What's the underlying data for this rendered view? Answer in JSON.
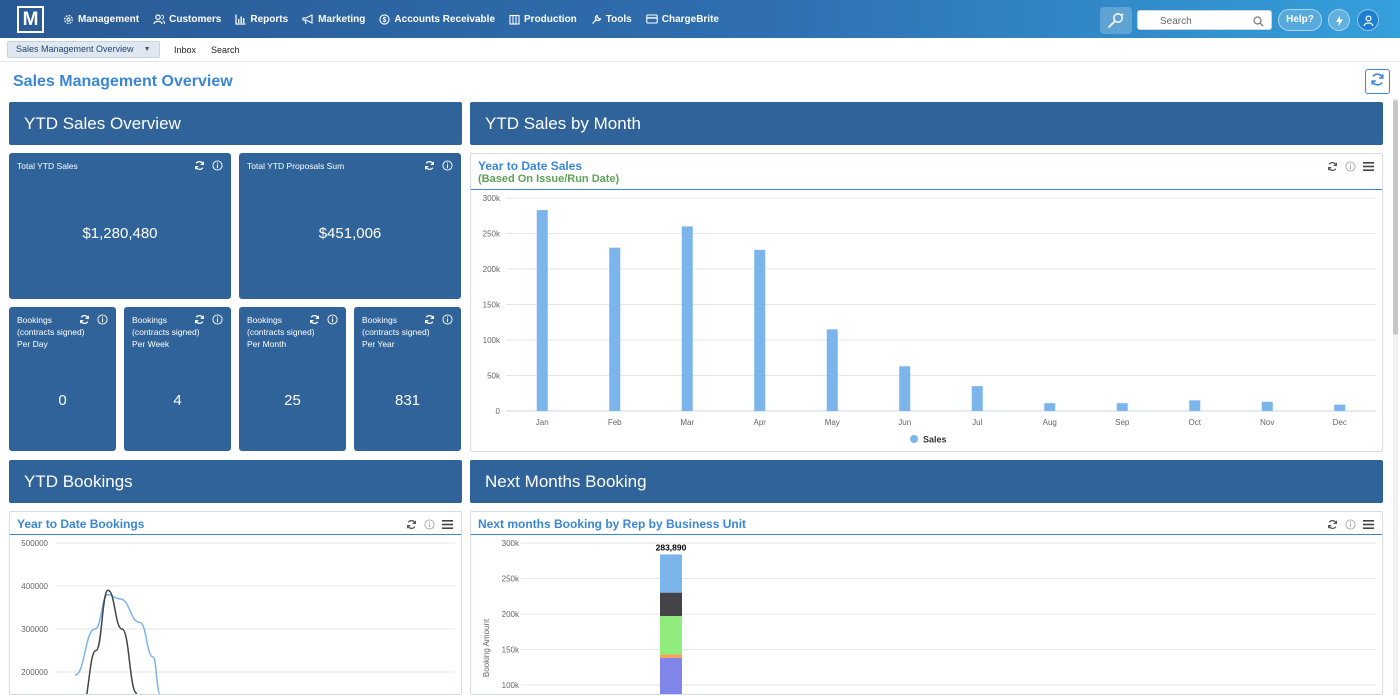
{
  "nav": {
    "logo": "M",
    "items": [
      {
        "label": "Management",
        "icon": "gear-icon"
      },
      {
        "label": "Customers",
        "icon": "users-icon"
      },
      {
        "label": "Reports",
        "icon": "bar-chart-icon"
      },
      {
        "label": "Marketing",
        "icon": "megaphone-icon"
      },
      {
        "label": "Accounts Receivable",
        "icon": "dollar-circle-icon"
      },
      {
        "label": "Production",
        "icon": "building-icon"
      },
      {
        "label": "Tools",
        "icon": "wrench-icon"
      },
      {
        "label": "ChargeBrite",
        "icon": "credit-card-icon"
      }
    ],
    "search_placeholder": "Search",
    "help_label": "Help?"
  },
  "tabs": {
    "active": "Sales Management Overview",
    "inbox": "Inbox",
    "search": "Search"
  },
  "page": {
    "title": "Sales Management Overview"
  },
  "sections": {
    "ytd_overview": "YTD Sales Overview",
    "ytd_by_month": "YTD Sales by Month",
    "ytd_bookings": "YTD Bookings",
    "next_months": "Next Months Booking"
  },
  "tiles": {
    "total_ytd_sales": {
      "label": "Total YTD Sales",
      "value": "$1,280,480"
    },
    "total_ytd_proposals": {
      "label": "Total YTD Proposals Sum",
      "value": "$451,006"
    },
    "per_day": {
      "label": "Bookings\n(contracts signed)\nPer Day",
      "value": "0"
    },
    "per_week": {
      "label": "Bookings\n(contracts signed)\nPer Week",
      "value": "4"
    },
    "per_month": {
      "label": "Bookings\n(contracts signed)\nPer Month",
      "value": "25"
    },
    "per_year": {
      "label": "Bookings\n(contracts signed)\nPer Year",
      "value": "831"
    }
  },
  "panels": {
    "ytd_sales": {
      "title": "Year to Date Sales",
      "subtitle": "(Based On Issue/Run Date)"
    },
    "ytd_bookings": {
      "title": "Year to Date Bookings"
    },
    "next_months": {
      "title": "Next months Booking by Rep by Business Unit"
    }
  },
  "chart_data": [
    {
      "type": "bar",
      "title": "Year to Date Sales",
      "subtitle": "(Based On Issue/Run Date)",
      "categories": [
        "Jan",
        "Feb",
        "Mar",
        "Apr",
        "May",
        "Jun",
        "Jul",
        "Aug",
        "Sep",
        "Oct",
        "Nov",
        "Dec"
      ],
      "series": [
        {
          "name": "Sales",
          "values": [
            283000,
            230000,
            260000,
            227000,
            115000,
            63000,
            35000,
            11000,
            11000,
            15000,
            13000,
            9000
          ],
          "color": "#7cb5ec"
        }
      ],
      "ylim": [
        0,
        300000
      ],
      "yticks": [
        "0",
        "50k",
        "100k",
        "150k",
        "200k",
        "250k",
        "300k"
      ],
      "legend": "bottom-center",
      "grid": true
    },
    {
      "type": "line",
      "title": "Year to Date Bookings",
      "yticks": [
        "200000",
        "300000",
        "400000",
        "500000"
      ],
      "ylim": [
        150000,
        500000
      ],
      "series": [
        {
          "values": [
            193000,
            300000,
            380000,
            370000,
            315000,
            235000,
            150000
          ],
          "color": "#7cb5ec"
        },
        {
          "values": [
            120000,
            250000,
            390000,
            300000,
            150000
          ],
          "color": "#434348"
        }
      ],
      "grid": true
    },
    {
      "type": "bar",
      "stacked": true,
      "title": "Next months Booking by Rep by Business Unit",
      "ylabel": "Booking Amount",
      "ylim": [
        90000,
        300000
      ],
      "yticks": [
        "100k",
        "150k",
        "200k",
        "250k",
        "300k"
      ],
      "total_label": "283,890",
      "segments": [
        {
          "value": 283890,
          "color": "#7cb5ec"
        },
        {
          "value": 230000,
          "color": "#434348"
        },
        {
          "value": 197000,
          "color": "#90ed7d"
        },
        {
          "value": 143000,
          "color": "#f7a35c"
        },
        {
          "value": 138000,
          "color": "#8085e9"
        }
      ],
      "grid": true
    }
  ]
}
